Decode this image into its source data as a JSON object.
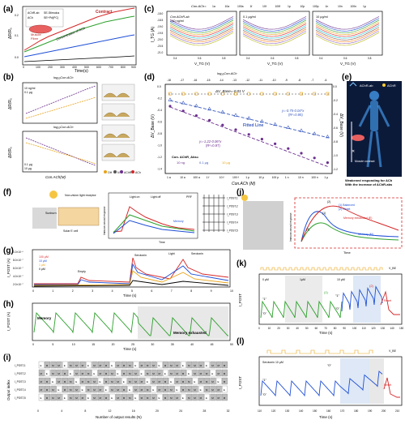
{
  "panels": {
    "a": {
      "letter": "(a)",
      "legend_box": [
        "AChR-ab",
        "SE-Stimulus",
        "ACh",
        "SE+Pd(PC)"
      ],
      "contract_label": "Contract",
      "muscle_label": "Muscle",
      "fibre_label": "Fibre",
      "annotation": "Concentration of ACh",
      "ylabel": "ΔR/R₀",
      "xlabel": "Time(s)",
      "xticks": [
        "0",
        "100",
        "200",
        "300",
        "400",
        "500",
        "600",
        "700",
        "800",
        "900"
      ],
      "yticks": [
        "0.2",
        "0.1",
        "0.0"
      ]
    },
    "b": {
      "letter": "(b)",
      "top_axis_label": "log₁₀Con.ACh",
      "top_axis_label_2": "log₁₀Con.ACh",
      "xticks": [
        "1a",
        "10a",
        "100a",
        "1f",
        "10f",
        "100f",
        "1p",
        "10p",
        "100p",
        "1n",
        "10n",
        "100n",
        "1μ"
      ],
      "ylabel": "ΔR/R₀",
      "xlabel": "Con.ACh(M)",
      "legend_top": [
        "10 ng/ml",
        "0.1 μg"
      ],
      "legend_bottom": [
        "0.1 μg",
        "10 μg"
      ],
      "bottom_legend": [
        "OH",
        "N",
        "AChR",
        "ACh"
      ]
    },
    "c": {
      "letter": "(c)",
      "top_scale_label": "Con.ACh=",
      "top_scale": [
        "1a",
        "10a",
        "100a",
        "1f",
        "10f",
        "100f",
        "1p",
        "10p",
        "100p",
        "1n",
        "10n",
        "100n",
        "1μ"
      ],
      "sub_labels": [
        "Con.AChR-ab",
        "=10 ng/ml",
        "0.1 μg/ml",
        "10 μg/ml"
      ],
      "ylabel": "I_TG (A)",
      "xlabel": "V_TG (V)",
      "yticks": [
        "-18.0",
        "-18.5",
        "-19.0",
        "-19.5",
        "-20.0",
        "-20.5",
        "-21.0"
      ],
      "xticks": [
        "0.4",
        "0.6",
        "0.8"
      ]
    },
    "d": {
      "letter": "(d)",
      "top_label": "log₁₀Con.ACh",
      "top_ticks": [
        "-18",
        "-17",
        "-16",
        "-15",
        "-14",
        "-13",
        "-12",
        "-11",
        "-10",
        "-9",
        "-8",
        "-7",
        "-6"
      ],
      "annotation_top": "ΔV_Base=-0.01 V",
      "eq1": "y=-0.75-0.04*x",
      "r1": "(R²=0.95)",
      "eq2": "y=-1.22-0.06*x",
      "r2": "(R²=0.97)",
      "fit_label": "Fitted Line",
      "legend_title": "Con. AChR_Abs=",
      "legend_items": [
        "10 ng",
        "0.1 μg",
        "10 μg"
      ],
      "ylabel": "ΔV_Base (V)",
      "ylabel_right": "ΔV_Base (V)",
      "xlabel": "Con.ACh (M)",
      "xticks": [
        "1 a",
        "10 a",
        "100 a",
        "1 f",
        "10 f",
        "100 f",
        "1 p",
        "10 p",
        "100 p",
        "1 n",
        "10 n",
        "100 n",
        "1 μ"
      ],
      "yticks": [
        "0.0",
        "-0.2",
        "-0.4",
        "-0.6",
        "-0.8",
        "-1.0",
        "-1.2",
        "-1.4"
      ],
      "yticks_right": [
        "0.0",
        "-0.2",
        "-0.4",
        "-0.6",
        "-0.8",
        "-1.0",
        "-1.2"
      ]
    },
    "e": {
      "letter": "(e)",
      "legend": [
        "AChR-ab",
        "AChR"
      ],
      "muscle_label": "Muscle contract",
      "caption": "Weakened responding for ACh With the increase of AChR-abs"
    },
    "f": {
      "letter": "(f)",
      "receptor_label": "Non-vision light receptor",
      "sun_label": "Sunburn",
      "solar_label": "Solar E cell",
      "chart_labels": [
        "Light on",
        "Light off",
        "PRF",
        "Memory"
      ],
      "ylabel": "Immune-neural response",
      "time_label": "Time",
      "array_labels": [
        "I_POST,1",
        "I_POST,2",
        "I_POST,3",
        "I_POST,4",
        "I_POST,5"
      ]
    },
    "g": {
      "letter": "(g)",
      "legend": [
        "100 μM",
        "10 μM",
        "1 μM",
        "0 μM"
      ],
      "labels": [
        "Empty",
        "Serotonin",
        "Light",
        "Serotonin"
      ],
      "ylabel": "I_POST (A)",
      "xlabel": "Time (s)",
      "xticks": [
        "0",
        "1",
        "2",
        "3",
        "4",
        "5",
        "6",
        "7",
        "8",
        "9",
        "10"
      ],
      "yticks": [
        "1.0×10⁻⁶",
        "8.0×10⁻⁷",
        "6.0×10⁻⁷",
        "4.0×10⁻⁷",
        "2.0×10⁻⁷"
      ]
    },
    "h": {
      "letter": "(h)",
      "label_memory": "Memory",
      "label_exhausted": "Memory exhausted",
      "ylabel": "I_POST (A)",
      "xlabel": "Time (s)",
      "xticks": [
        "0",
        "5",
        "10",
        "15",
        "20",
        "25",
        "30",
        "35",
        "40",
        "45",
        "50"
      ],
      "yticks": [
        "1.0×10⁻⁶",
        "8.0×10⁻⁷",
        "6.0×10⁻⁷",
        "4.0×10⁻⁷"
      ]
    },
    "i": {
      "letter": "(i)",
      "rows": [
        "I_POST,1",
        "I_POST,2",
        "I_POST,3",
        "I_POST,4",
        "I_POST,5"
      ],
      "ylabel": "Output index",
      "xlabel": "Number of output results (N)",
      "xticks": [
        "0",
        "4",
        "8",
        "12",
        "16",
        "20",
        "24",
        "28",
        "32"
      ],
      "cell_letters": [
        "M",
        "E"
      ]
    },
    "j": {
      "letter": "(j)",
      "ylabel": "Immune-neural response",
      "xlabel": "Time",
      "legend": [
        "(1) Balanced",
        "(2) Reset",
        "Memory exhausted (E)",
        "Memory (M)"
      ],
      "tags": [
        "(1)",
        "(2)",
        "(3)"
      ]
    },
    "k": {
      "letter": "(k)",
      "labels": [
        "0 μM",
        "1μM",
        "10 μM",
        "\"1\"",
        "\"0\"",
        "\"1\"",
        "\"0\"",
        "Reset",
        "V_BE"
      ],
      "ylabel": "I_POST",
      "xlabel": "Time (s)",
      "xticks": [
        "0",
        "10",
        "20",
        "30",
        "40",
        "50",
        "60",
        "70",
        "80",
        "90",
        "100",
        "110",
        "120",
        "130",
        "140",
        "150"
      ],
      "yticks": [
        "1.2×10⁻⁶",
        "1.0×10⁻⁶",
        "8.0×10⁻⁷",
        "6.0×10⁻⁷",
        "4.0×10⁻⁷"
      ],
      "tags": [
        "(1)",
        "(2)"
      ]
    },
    "l": {
      "letter": "(l)",
      "labels": [
        "Serotonin 10 μM",
        "\"1\"",
        "\"0\"",
        "\"0\"",
        "Reset",
        "V_BE"
      ],
      "ylabel": "I_POST",
      "xlabel": "Time (s)",
      "xticks": [
        "110",
        "120",
        "130",
        "140",
        "150",
        "160",
        "170",
        "180",
        "190",
        "200",
        "210"
      ]
    }
  },
  "colors": {
    "axis": "#000000",
    "series_red": "#d62728",
    "series_green": "#2ca02c",
    "series_blue": "#1f4fd6",
    "series_orange": "#e8a317",
    "series_purple": "#6b2f8f",
    "series_black": "#000000",
    "highlight_blue": "#c8d8f0",
    "highlight_gray": "#d8d8d8",
    "fit_blue": "#3b5bbf"
  }
}
